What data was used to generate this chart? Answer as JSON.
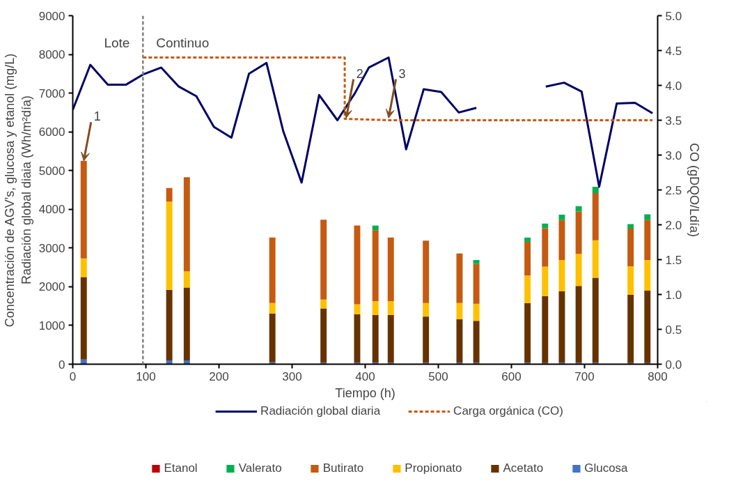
{
  "chart_data": {
    "type": "bar",
    "stacked": true,
    "xlabel": "Tiempo (h)",
    "ylabel": "Concentración de AGV's, glucosa y etanol (mg/L)\nRadiación global diaia (Wh/m²día)",
    "y2label": "CO (gDQO/Ldía)",
    "x": [
      15,
      132,
      156,
      273,
      343,
      389,
      414,
      435,
      483,
      529,
      552,
      622,
      646,
      669,
      692,
      715,
      763,
      786
    ],
    "xlim": [
      0,
      800
    ],
    "xticks": [
      0,
      100,
      200,
      300,
      400,
      500,
      600,
      700,
      800
    ],
    "ylim": [
      0,
      9000
    ],
    "yticks": [
      0,
      1000,
      2000,
      3000,
      4000,
      5000,
      6000,
      7000,
      8000,
      9000
    ],
    "y2lim": [
      0,
      5
    ],
    "y2ticks": [
      {
        "value": 0,
        "label": "0.0"
      },
      {
        "value": 0.5,
        "label": "0.5"
      },
      {
        "value": 1,
        "label": "1.0"
      },
      {
        "value": 1.5,
        "label": "1.5"
      },
      {
        "value": 2,
        "label": "2.0"
      },
      {
        "value": 2.5,
        "label": "2.5"
      },
      {
        "value": 3,
        "label": "3.0"
      },
      {
        "value": 3.5,
        "label": "3.5"
      },
      {
        "value": 4,
        "label": "4.0"
      },
      {
        "value": 4.5,
        "label": "4.5"
      },
      {
        "value": 5,
        "label": "5.0"
      }
    ],
    "series": [
      {
        "name": "Glucosa",
        "color": "#4472c4",
        "values": [
          120,
          100,
          100,
          50,
          40,
          40,
          40,
          40,
          40,
          40,
          40,
          40,
          30,
          40,
          40,
          40,
          30,
          30
        ]
      },
      {
        "name": "Acetato",
        "color": "#663300",
        "values": [
          2130,
          1820,
          1880,
          1260,
          1400,
          1250,
          1230,
          1230,
          1190,
          1120,
          1080,
          1540,
          1730,
          1840,
          1980,
          2190,
          1760,
          1870
        ]
      },
      {
        "name": "Propionato",
        "color": "#ffc000",
        "values": [
          480,
          2280,
          420,
          270,
          230,
          260,
          360,
          360,
          350,
          420,
          440,
          710,
          760,
          810,
          830,
          970,
          740,
          790
        ]
      },
      {
        "name": "Butirato",
        "color": "#c55a11",
        "values": [
          2520,
          350,
          2430,
          1690,
          2060,
          2030,
          1830,
          1640,
          1610,
          1280,
          1030,
          870,
          990,
          1030,
          1090,
          1220,
          970,
          1030
        ]
      },
      {
        "name": "Valerato",
        "color": "#00b050",
        "values": [
          0,
          0,
          0,
          0,
          0,
          0,
          120,
          0,
          0,
          0,
          100,
          110,
          120,
          140,
          140,
          160,
          120,
          150
        ]
      },
      {
        "name": "Etanol",
        "color": "#c00000",
        "values": [
          0,
          0,
          0,
          0,
          0,
          0,
          0,
          0,
          0,
          0,
          0,
          0,
          0,
          0,
          0,
          0,
          0,
          0
        ]
      },
      {
        "name": "Radiación global diaria",
        "type": "line",
        "color": "#000066",
        "line_style": "solid",
        "x": [
          0,
          24,
          48,
          73,
          96,
          121,
          145,
          169,
          193,
          217,
          241,
          265,
          288,
          313,
          337,
          362,
          386,
          405,
          432,
          456,
          480,
          504,
          528,
          552,
          600,
          647,
          672,
          696,
          720,
          744,
          769,
          793
        ],
        "values": [
          6570,
          7730,
          7220,
          7220,
          7480,
          7660,
          7170,
          6920,
          6130,
          5850,
          7500,
          7780,
          6010,
          4690,
          6950,
          6300,
          7000,
          7660,
          7920,
          5550,
          7100,
          7030,
          6500,
          6620,
          null,
          7170,
          7270,
          7040,
          4580,
          6730,
          6750,
          6480
        ]
      },
      {
        "name": "Carga orgánica (CO)",
        "type": "line",
        "axis": "y2",
        "color": "#c55a11",
        "line_style": "dashed",
        "x": [
          96,
          372,
          372,
          435,
          793
        ],
        "values": [
          4.4,
          4.4,
          3.52,
          3.5,
          3.5
        ]
      }
    ],
    "ref_lines": [
      {
        "axis": "x",
        "value": 96,
        "color": "#808080",
        "line_style": "dashed"
      }
    ],
    "annotations": [
      "Lote",
      "Continuo",
      {
        "text": "1",
        "x": 15,
        "y": 5250
      },
      {
        "text": "2",
        "x": 374,
        "y": 6360
      },
      {
        "text": "3",
        "x": 432,
        "y": 6360
      }
    ],
    "legend": "bottom",
    "grid": false,
    "marker": "none"
  }
}
